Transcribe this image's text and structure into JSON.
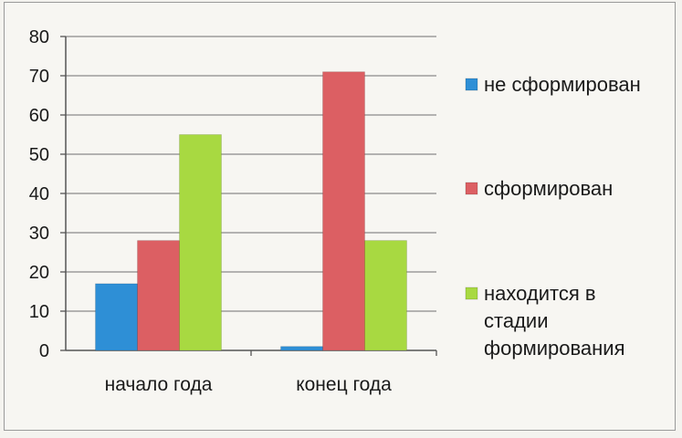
{
  "chart_data": {
    "type": "bar",
    "categories": [
      "начало года",
      "конец года"
    ],
    "series": [
      {
        "name": "не сформирован",
        "values": [
          17,
          1
        ],
        "color": "#2e8fd6"
      },
      {
        "name": "сформирован",
        "values": [
          28,
          71
        ],
        "color": "#dc5f63"
      },
      {
        "name": "находится в стадии формирования",
        "values": [
          55,
          28
        ],
        "color": "#a8d941"
      }
    ],
    "ylim": [
      0,
      80
    ],
    "yticks": [
      "0",
      "10",
      "20",
      "30",
      "40",
      "50",
      "60",
      "70",
      "80"
    ],
    "grid": true,
    "legend_position": "right",
    "legend_lines": [
      [
        "не сформирован"
      ],
      [
        "сформирован"
      ],
      [
        "находится в",
        "стадии",
        "формирования"
      ]
    ],
    "title": "",
    "xlabel": "",
    "ylabel": ""
  }
}
